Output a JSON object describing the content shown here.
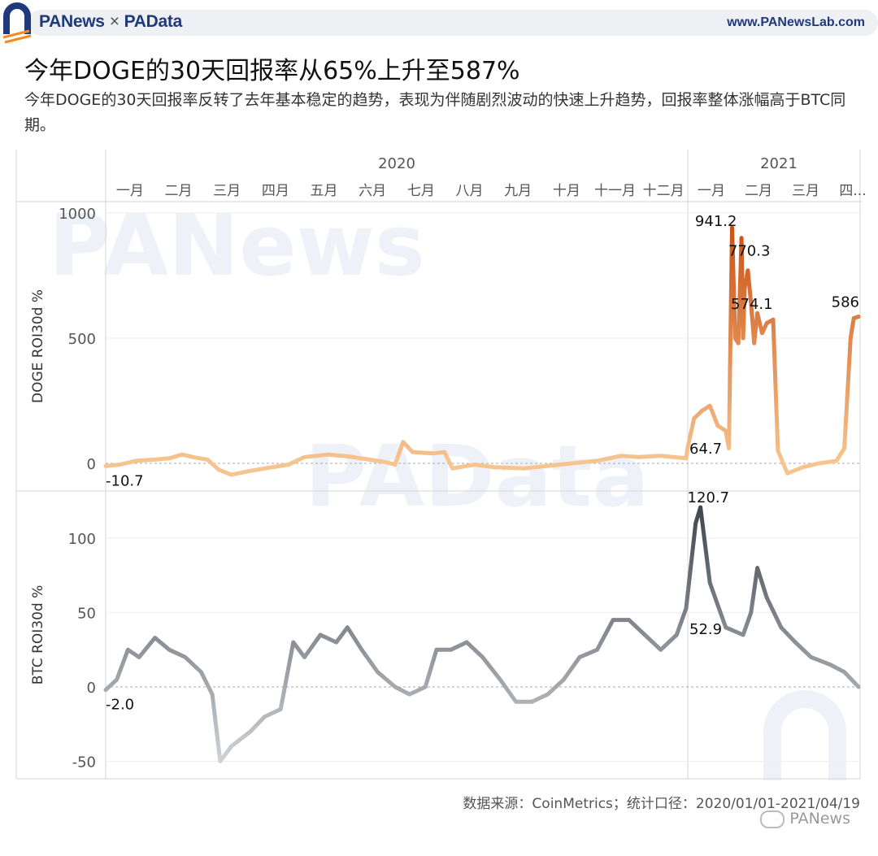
{
  "header": {
    "brand_left": "PANews",
    "brand_sep": "×",
    "brand_right": "PAData",
    "site": "www.PANewsLab.com"
  },
  "title": "今年DOGE的30天回报率从65%上升至587%",
  "subtitle": "今年DOGE的30天回报率反转了去年基本稳定的趋势，表现为伴随剧烈波动的快速上升趋势，回报率整体涨幅高于BTC同期。",
  "watermark": {
    "top": "PANews",
    "mid": "PAData"
  },
  "source": "数据来源：CoinMetrics；统计口径：2020/01/01-2021/04/19",
  "wechat": "PANews",
  "colors": {
    "doge_light": "#f6c58f",
    "doge_dark": "#d2560f",
    "btc_light": "#c9cdd1",
    "btc_dark": "#4a5058",
    "brand": "#1f3a7a"
  },
  "chart_data": [
    {
      "type": "line",
      "xlabel": "",
      "ylabel": "DOGE ROI30d %",
      "ylim": [
        -100,
        1100
      ],
      "yticks": [
        0,
        500,
        1000
      ],
      "years": [
        "2020",
        "2021"
      ],
      "months": [
        "一月",
        "二月",
        "三月",
        "四月",
        "五月",
        "六月",
        "七月",
        "八月",
        "九月",
        "十月",
        "十一月",
        "十二月",
        "一月",
        "二月",
        "三月",
        "四..."
      ],
      "series": [
        {
          "points": [
            [
              "2020-01-01",
              -10.7
            ],
            [
              "2020-01-10",
              -5
            ],
            [
              "2020-01-20",
              10
            ],
            [
              "2020-02-01",
              15
            ],
            [
              "2020-02-10",
              20
            ],
            [
              "2020-02-18",
              35
            ],
            [
              "2020-02-25",
              25
            ],
            [
              "2020-03-05",
              15
            ],
            [
              "2020-03-12",
              -25
            ],
            [
              "2020-03-20",
              -45
            ],
            [
              "2020-04-01",
              -30
            ],
            [
              "2020-04-15",
              -15
            ],
            [
              "2020-04-25",
              -5
            ],
            [
              "2020-05-05",
              25
            ],
            [
              "2020-05-20",
              35
            ],
            [
              "2020-06-01",
              28
            ],
            [
              "2020-06-15",
              15
            ],
            [
              "2020-06-25",
              5
            ],
            [
              "2020-07-01",
              -5
            ],
            [
              "2020-07-06",
              85
            ],
            [
              "2020-07-12",
              45
            ],
            [
              "2020-07-25",
              40
            ],
            [
              "2020-08-01",
              45
            ],
            [
              "2020-08-06",
              -20
            ],
            [
              "2020-08-20",
              -5
            ],
            [
              "2020-09-01",
              -15
            ],
            [
              "2020-09-20",
              -20
            ],
            [
              "2020-10-05",
              -10
            ],
            [
              "2020-10-20",
              0
            ],
            [
              "2020-11-05",
              10
            ],
            [
              "2020-11-20",
              30
            ],
            [
              "2020-12-01",
              25
            ],
            [
              "2020-12-15",
              30
            ],
            [
              "2020-12-31",
              20
            ],
            [
              "2021-01-01",
              64.7
            ],
            [
              "2021-01-05",
              180
            ],
            [
              "2021-01-10",
              210
            ],
            [
              "2021-01-15",
              230
            ],
            [
              "2021-01-20",
              150
            ],
            [
              "2021-01-25",
              130
            ],
            [
              "2021-01-27",
              60
            ],
            [
              "2021-01-29",
              941.2
            ],
            [
              "2021-01-31",
              500
            ],
            [
              "2021-02-02",
              480
            ],
            [
              "2021-02-04",
              900
            ],
            [
              "2021-02-05",
              500
            ],
            [
              "2021-02-06",
              700
            ],
            [
              "2021-02-08",
              770.3
            ],
            [
              "2021-02-10",
              640
            ],
            [
              "2021-02-12",
              480
            ],
            [
              "2021-02-14",
              600
            ],
            [
              "2021-02-17",
              520
            ],
            [
              "2021-02-20",
              560
            ],
            [
              "2021-02-24",
              574.1
            ],
            [
              "2021-02-27",
              50
            ],
            [
              "2021-03-05",
              -40
            ],
            [
              "2021-03-15",
              -15
            ],
            [
              "2021-03-25",
              0
            ],
            [
              "2021-04-05",
              10
            ],
            [
              "2021-04-10",
              60
            ],
            [
              "2021-04-14",
              500
            ],
            [
              "2021-04-16",
              580
            ],
            [
              "2021-04-19",
              586
            ]
          ]
        }
      ],
      "annotations": [
        {
          "x": "2020-01-01",
          "y": -10.7,
          "label": "-10.7"
        },
        {
          "x": "2021-01-01",
          "y": 64.7,
          "label": "64.7"
        },
        {
          "x": "2021-01-29",
          "y": 941.2,
          "label": "941.2"
        },
        {
          "x": "2021-02-08",
          "y": 770.3,
          "label": "770.3"
        },
        {
          "x": "2021-02-24",
          "y": 574.1,
          "label": "574.1"
        },
        {
          "x": "2021-04-19",
          "y": 586,
          "label": "586"
        }
      ]
    },
    {
      "type": "line",
      "xlabel": "",
      "ylabel": "BTC ROI30d %",
      "ylim": [
        -60,
        130
      ],
      "yticks": [
        -50,
        0,
        50,
        100
      ],
      "series": [
        {
          "points": [
            [
              "2020-01-01",
              -2.0
            ],
            [
              "2020-01-08",
              5
            ],
            [
              "2020-01-15",
              25
            ],
            [
              "2020-01-22",
              20
            ],
            [
              "2020-02-01",
              33
            ],
            [
              "2020-02-10",
              25
            ],
            [
              "2020-02-20",
              20
            ],
            [
              "2020-03-01",
              10
            ],
            [
              "2020-03-08",
              -5
            ],
            [
              "2020-03-13",
              -50
            ],
            [
              "2020-03-20",
              -40
            ],
            [
              "2020-04-01",
              -30
            ],
            [
              "2020-04-10",
              -20
            ],
            [
              "2020-04-20",
              -15
            ],
            [
              "2020-04-28",
              30
            ],
            [
              "2020-05-05",
              20
            ],
            [
              "2020-05-15",
              35
            ],
            [
              "2020-05-25",
              30
            ],
            [
              "2020-06-01",
              40
            ],
            [
              "2020-06-10",
              25
            ],
            [
              "2020-06-20",
              10
            ],
            [
              "2020-07-01",
              0
            ],
            [
              "2020-07-10",
              -5
            ],
            [
              "2020-07-20",
              0
            ],
            [
              "2020-07-27",
              25
            ],
            [
              "2020-08-05",
              25
            ],
            [
              "2020-08-15",
              30
            ],
            [
              "2020-08-25",
              20
            ],
            [
              "2020-09-05",
              5
            ],
            [
              "2020-09-15",
              -10
            ],
            [
              "2020-09-25",
              -10
            ],
            [
              "2020-10-05",
              -5
            ],
            [
              "2020-10-15",
              5
            ],
            [
              "2020-10-25",
              20
            ],
            [
              "2020-11-05",
              25
            ],
            [
              "2020-11-15",
              45
            ],
            [
              "2020-11-25",
              45
            ],
            [
              "2020-12-05",
              35
            ],
            [
              "2020-12-15",
              25
            ],
            [
              "2020-12-25",
              35
            ],
            [
              "2020-12-31",
              52.9
            ],
            [
              "2021-01-06",
              110
            ],
            [
              "2021-01-09",
              120.7
            ],
            [
              "2021-01-15",
              70
            ],
            [
              "2021-01-25",
              40
            ],
            [
              "2021-02-05",
              35
            ],
            [
              "2021-02-10",
              50
            ],
            [
              "2021-02-14",
              80
            ],
            [
              "2021-02-20",
              60
            ],
            [
              "2021-03-01",
              40
            ],
            [
              "2021-03-10",
              30
            ],
            [
              "2021-03-20",
              20
            ],
            [
              "2021-04-01",
              15
            ],
            [
              "2021-04-10",
              10
            ],
            [
              "2021-04-19",
              0
            ]
          ]
        }
      ],
      "annotations": [
        {
          "x": "2020-01-01",
          "y": -2.0,
          "label": "-2.0"
        },
        {
          "x": "2020-12-31",
          "y": 52.9,
          "label": "52.9"
        },
        {
          "x": "2021-01-09",
          "y": 120.7,
          "label": "120.7"
        }
      ]
    }
  ]
}
